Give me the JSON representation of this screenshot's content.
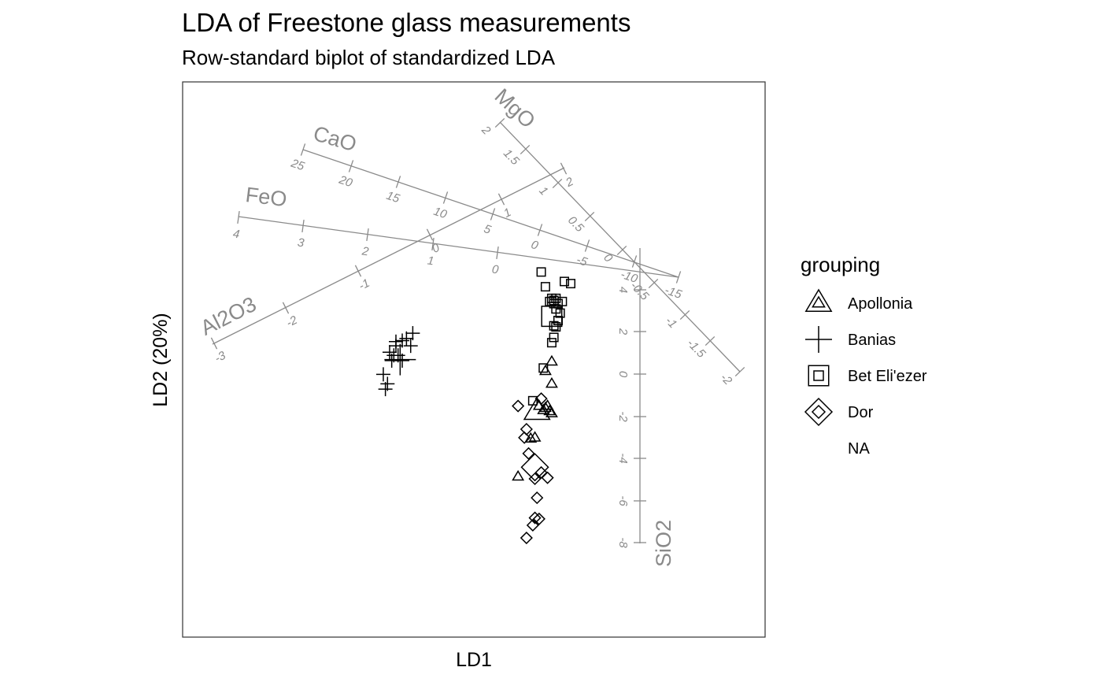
{
  "chart_data": {
    "type": "scatter",
    "title": "LDA of Freestone glass measurements",
    "subtitle": "Row-standard biplot of standardized LDA",
    "xlabel": "LD1",
    "ylabel": "LD2 (20%)",
    "grid": false,
    "legend": {
      "title": "grouping",
      "placement": "right",
      "entries": [
        {
          "label": "Apollonia",
          "shape": "triangle"
        },
        {
          "label": "Banias",
          "shape": "plus"
        },
        {
          "label": "Bet Eli'ezer",
          "shape": "square"
        },
        {
          "label": "Dor",
          "shape": "diamond"
        },
        {
          "label": "NA",
          "shape": "none"
        }
      ]
    },
    "groups": [
      {
        "name": "Apollonia",
        "shape": "triangle",
        "points": [
          [
            -1.3,
            0.55
          ],
          [
            -1.45,
            0.1
          ],
          [
            -1.3,
            -0.5
          ],
          [
            -1.6,
            -1.55
          ],
          [
            -1.4,
            -1.55
          ],
          [
            -1.35,
            -1.8
          ],
          [
            -1.3,
            -1.9
          ],
          [
            -1.5,
            -1.75
          ],
          [
            -1.8,
            -3.1
          ],
          [
            -1.7,
            -3.05
          ],
          [
            -2.1,
            -4.9
          ],
          [
            -1.45,
            -1.65
          ]
        ],
        "centroid": [
          -1.65,
          -1.8
        ]
      },
      {
        "name": "Banias",
        "shape": "plus",
        "points": [
          [
            -4.6,
            1.9
          ],
          [
            -4.75,
            1.65
          ],
          [
            -4.65,
            1.3
          ],
          [
            -4.85,
            1.55
          ],
          [
            -5.0,
            1.3
          ],
          [
            -5.15,
            1.0
          ],
          [
            -5.05,
            0.85
          ],
          [
            -4.95,
            0.85
          ],
          [
            -4.85,
            0.6
          ],
          [
            -5.1,
            0.6
          ],
          [
            -5.3,
            -0.05
          ],
          [
            -5.2,
            -0.5
          ],
          [
            -5.25,
            -0.75
          ],
          [
            -5.0,
            1.5
          ]
        ],
        "centroid": [
          -4.9,
          0.65
        ]
      },
      {
        "name": "Bet Eli'ezer",
        "shape": "square",
        "points": [
          [
            -1.55,
            4.8
          ],
          [
            -1.45,
            4.1
          ],
          [
            -1.35,
            3.4
          ],
          [
            -1.3,
            3.55
          ],
          [
            -1.25,
            3.3
          ],
          [
            -1.2,
            3.55
          ],
          [
            -1.15,
            3.3
          ],
          [
            -1.2,
            3.05
          ],
          [
            -1.25,
            3.45
          ],
          [
            -1.1,
            2.85
          ],
          [
            -1.15,
            2.5
          ],
          [
            -1.2,
            2.2
          ],
          [
            -1.25,
            2.25
          ],
          [
            -1.05,
            3.4
          ],
          [
            -1.0,
            4.35
          ],
          [
            -0.85,
            4.25
          ],
          [
            -1.25,
            1.7
          ],
          [
            -1.3,
            1.45
          ],
          [
            -1.5,
            0.25
          ],
          [
            -1.75,
            -1.3
          ],
          [
            -1.3,
            3.4
          ]
        ],
        "centroid": [
          -1.3,
          2.7
        ]
      },
      {
        "name": "Dor",
        "shape": "diamond",
        "points": [
          [
            -2.1,
            -1.55
          ],
          [
            -1.9,
            -2.65
          ],
          [
            -1.95,
            -3.05
          ],
          [
            -1.85,
            -3.8
          ],
          [
            -1.55,
            -1.2
          ],
          [
            -1.4,
            -4.95
          ],
          [
            -1.55,
            -4.7
          ],
          [
            -1.7,
            -5.0
          ],
          [
            -1.65,
            -5.9
          ],
          [
            -1.7,
            -6.85
          ],
          [
            -1.6,
            -6.9
          ],
          [
            -1.75,
            -7.2
          ],
          [
            -1.9,
            -7.8
          ]
        ],
        "centroid": [
          -1.7,
          -4.45
        ]
      }
    ],
    "variables": [
      {
        "name": "SiO2",
        "ticks": [
          -8,
          -6,
          -4,
          -2,
          0,
          2,
          4
        ]
      },
      {
        "name": "Al2O3",
        "ticks": [
          -3,
          -2,
          -1,
          0,
          1,
          2
        ]
      },
      {
        "name": "FeO",
        "ticks": [
          4,
          3,
          2,
          1,
          0
        ]
      },
      {
        "name": "CaO",
        "ticks": [
          25,
          20,
          15,
          10,
          5,
          0,
          -5,
          -10,
          -15
        ]
      },
      {
        "name": "MgO",
        "ticks": [
          2,
          1.5,
          1,
          0.5,
          0,
          -0.5,
          -1,
          -1.5,
          -2
        ]
      }
    ]
  },
  "colors": {
    "points": "#000000",
    "variable_axes": "#8a8a8a",
    "panel_border": "#333333"
  }
}
